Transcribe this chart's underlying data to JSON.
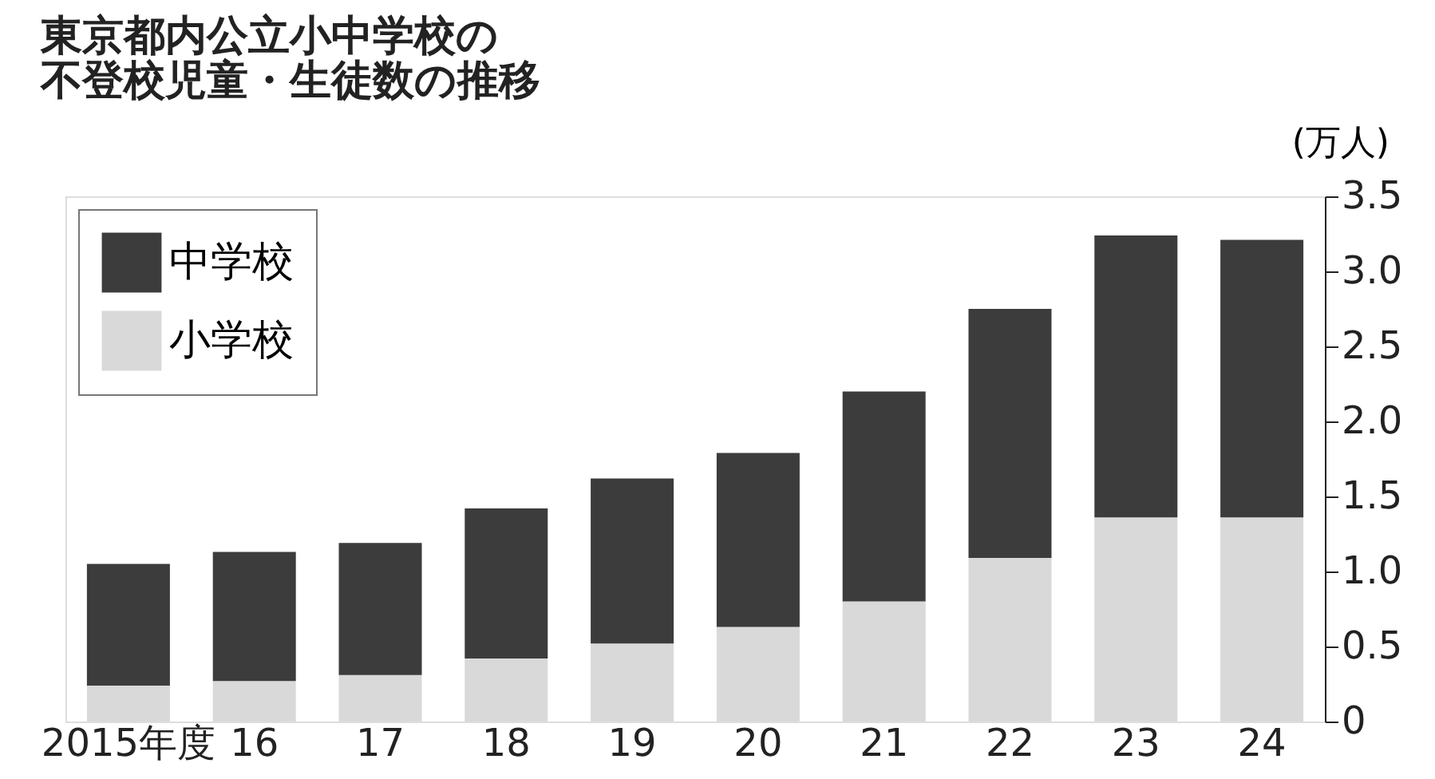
{
  "chart_data": {
    "type": "bar",
    "title": "東京都内公立小中学校の不登校児童・生徒数の推移",
    "ylabel": "(万人)",
    "categories": [
      "2015年度",
      "16",
      "17",
      "18",
      "19",
      "20",
      "21",
      "22",
      "23",
      "24"
    ],
    "stacked": true,
    "series": [
      {
        "name": "小学校",
        "color": "#d9d9d9",
        "values": [
          0.24,
          0.27,
          0.31,
          0.42,
          0.52,
          0.63,
          0.8,
          1.09,
          1.36,
          1.36
        ]
      },
      {
        "name": "中学校",
        "color": "#3c3c3c",
        "values": [
          0.81,
          0.86,
          0.88,
          1.0,
          1.1,
          1.16,
          1.4,
          1.66,
          1.88,
          1.85
        ]
      }
    ],
    "ylim": [
      0,
      3.5
    ],
    "yticks": [
      0,
      0.5,
      {
        "value": 1,
        "label": "1.0"
      },
      1.5,
      {
        "value": 2,
        "label": "2.0"
      },
      2.5,
      {
        "value": 3,
        "label": "3.0"
      },
      3.5
    ],
    "grid": false,
    "legend": "top left"
  }
}
